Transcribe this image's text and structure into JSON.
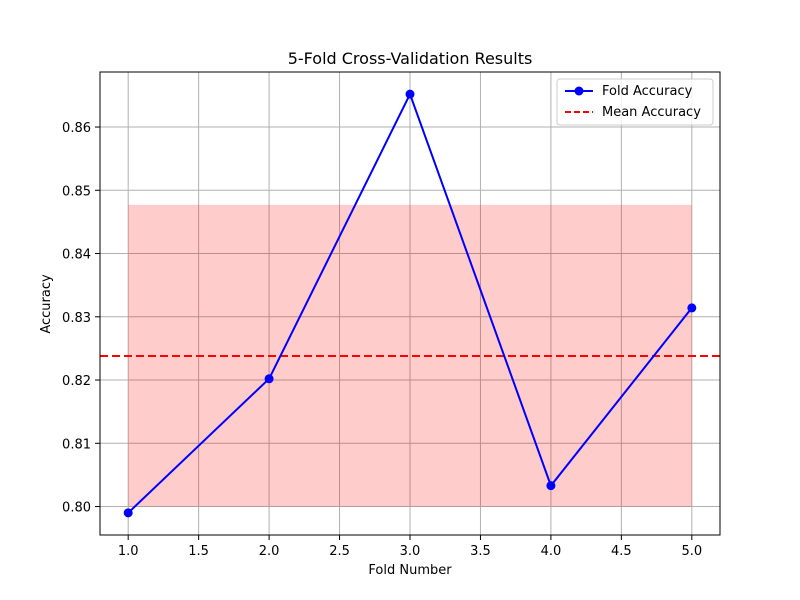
{
  "chart_data": {
    "type": "line",
    "title": "5-Fold Cross-Validation Results",
    "xlabel": "Fold Number",
    "ylabel": "Accuracy",
    "xlim": [
      0.8,
      5.2
    ],
    "ylim": [
      0.7955,
      0.8687
    ],
    "xticks": [
      1.0,
      1.5,
      2.0,
      2.5,
      3.0,
      3.5,
      4.0,
      4.5,
      5.0
    ],
    "xtick_labels": [
      "1.0",
      "1.5",
      "2.0",
      "2.5",
      "3.0",
      "3.5",
      "4.0",
      "4.5",
      "5.0"
    ],
    "yticks": [
      0.8,
      0.81,
      0.82,
      0.83,
      0.84,
      0.85,
      0.86
    ],
    "ytick_labels": [
      "0.80",
      "0.81",
      "0.82",
      "0.83",
      "0.84",
      "0.85",
      "0.86"
    ],
    "grid": true,
    "legend_position": "top-right",
    "series": [
      {
        "name": "Fold Accuracy",
        "x": [
          1,
          2,
          3,
          4,
          5
        ],
        "y": [
          0.799,
          0.8202,
          0.8652,
          0.8033,
          0.8314
        ],
        "color": "#0000ff",
        "style": "solid",
        "marker": "circle"
      },
      {
        "name": "Mean Accuracy",
        "y_constant": 0.8238,
        "color": "#ff0000",
        "style": "dashed"
      }
    ],
    "band": {
      "x_range": [
        1,
        5
      ],
      "y_range": [
        0.8,
        0.8477
      ],
      "color": "#ff0000",
      "alpha": 0.2
    }
  }
}
